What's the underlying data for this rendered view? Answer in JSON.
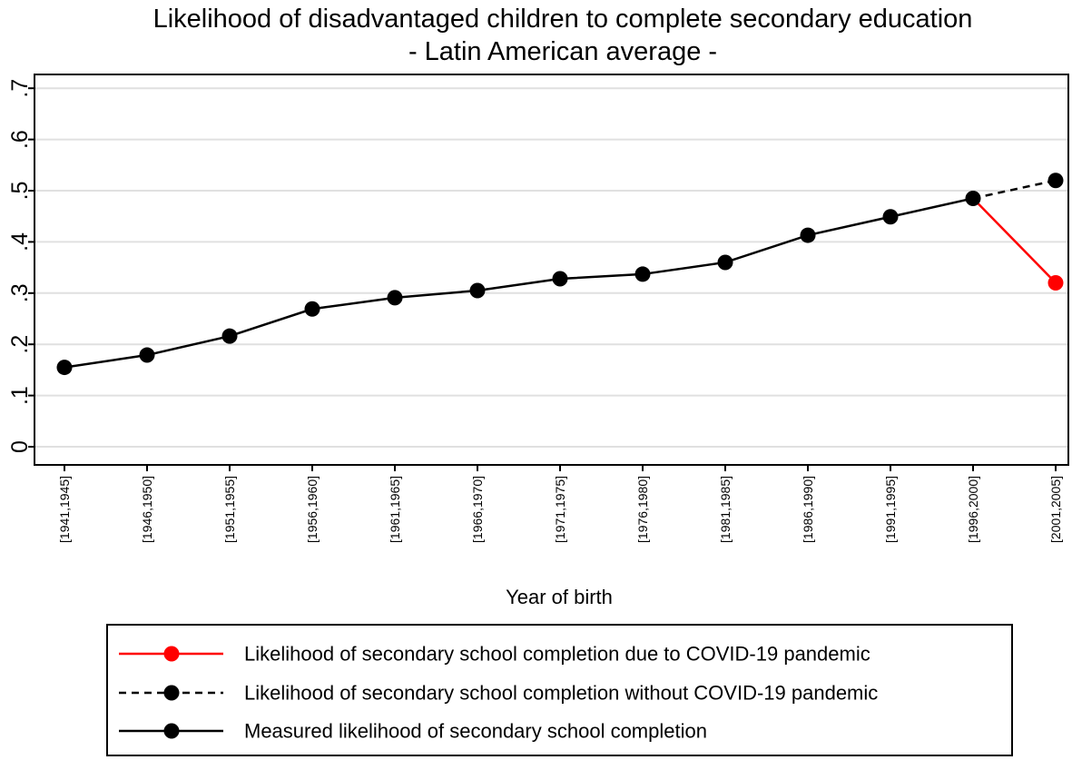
{
  "chart_data": {
    "type": "line",
    "title": "Likelihood of disadvantaged children to complete secondary education",
    "subtitle": "- Latin American average -",
    "xlabel": "Year of birth",
    "ylabel": "",
    "ylim": [
      0,
      0.7
    ],
    "yticks": [
      {
        "value": 0,
        "label": "0"
      },
      {
        "value": 0.1,
        "label": ".1"
      },
      {
        "value": 0.2,
        "label": ".2"
      },
      {
        "value": 0.3,
        "label": ".3"
      },
      {
        "value": 0.4,
        "label": ".4"
      },
      {
        "value": 0.5,
        "label": ".5"
      },
      {
        "value": 0.6,
        "label": ".6"
      },
      {
        "value": 0.7,
        "label": ".7"
      }
    ],
    "grid": true,
    "legend_position": "bottom",
    "categories": [
      "[1941,1945]",
      "[1946,1950]",
      "[1951,1955]",
      "[1956,1960]",
      "[1961,1965]",
      "[1966,1970]",
      "[1971,1975]",
      "[1976,1980]",
      "[1981,1985]",
      "[1986,1990]",
      "[1991,1995]",
      "[1996,2000]",
      "[2001,2005]"
    ],
    "series": [
      {
        "name": "Likelihood of secondary school completion due to COVID-19 pandemic",
        "color": "#ff0000",
        "dash": false,
        "values": [
          null,
          null,
          null,
          null,
          null,
          null,
          null,
          null,
          null,
          null,
          null,
          0.485,
          0.32
        ]
      },
      {
        "name": "Likelihood of secondary school completion without COVID-19 pandemic",
        "color": "#000000",
        "dash": true,
        "values": [
          null,
          null,
          null,
          null,
          null,
          null,
          null,
          null,
          null,
          null,
          null,
          0.485,
          0.52
        ]
      },
      {
        "name": "Measured likelihood of secondary school completion",
        "color": "#000000",
        "dash": false,
        "values": [
          0.155,
          0.179,
          0.216,
          0.269,
          0.291,
          0.305,
          0.328,
          0.337,
          0.36,
          0.413,
          0.449,
          0.485,
          null
        ]
      }
    ]
  }
}
